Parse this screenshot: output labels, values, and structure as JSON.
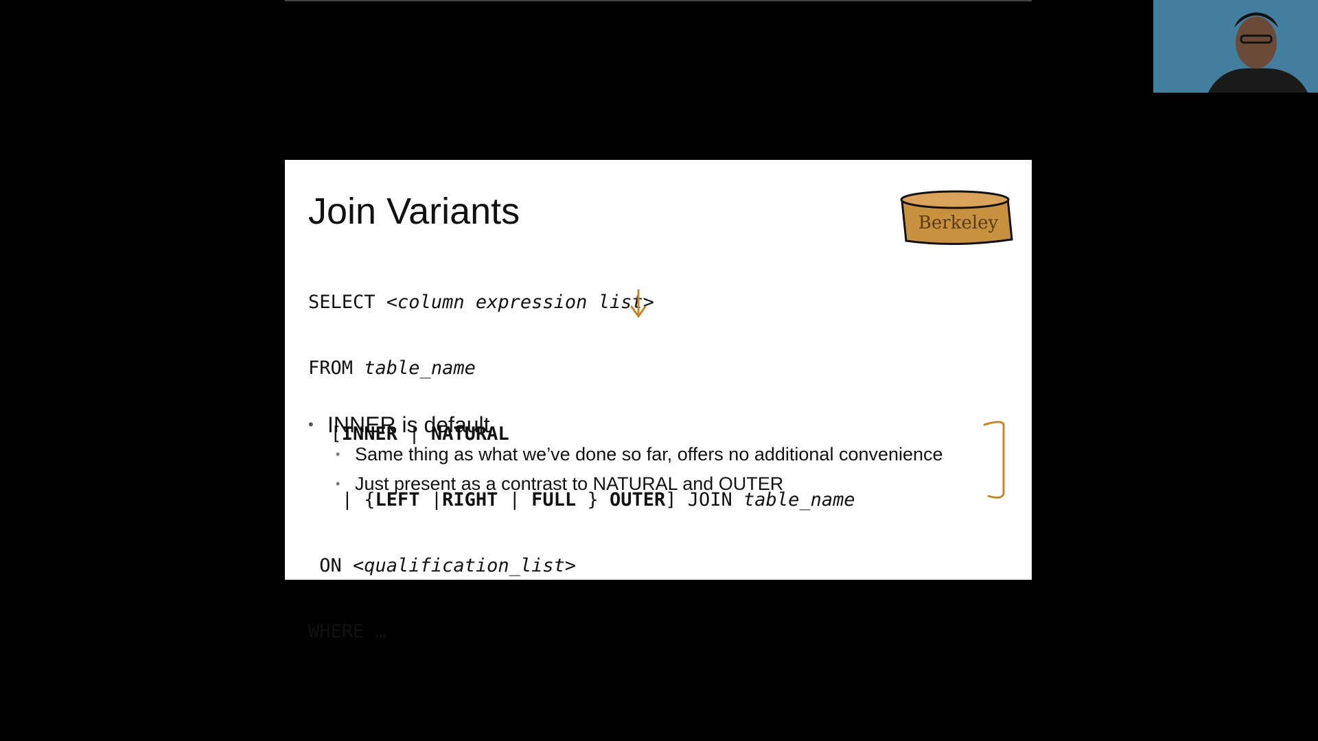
{
  "slide": {
    "title": "Join Variants",
    "code": {
      "l1_kw": "SELECT ",
      "l1_it": "<column expression list>",
      "l2_kw": "FROM ",
      "l2_it": "table_name",
      "l3_a": "  [",
      "l3_b1": "INNER",
      "l3_c": " | ",
      "l3_b2": "NATURAL",
      "l4_a": "   | {",
      "l4_b1": "LEFT",
      "l4_c1": " |",
      "l4_b2": "RIGHT",
      "l4_c2": " | ",
      "l4_b3": "FULL",
      "l4_c3": " } ",
      "l4_b4": "OUTER",
      "l4_c4": "] JOIN ",
      "l4_it": "table_name",
      "l5_kw": " ON ",
      "l5_it": "<qualification_list>",
      "l6": "WHERE …"
    },
    "bullets": {
      "main": "INNER is default",
      "sub1": "Same thing as what we’ve done so far, offers no additional convenience",
      "sub2": "Just present as a contrast to NATURAL and OUTER"
    },
    "logo_text": "Berkeley",
    "colors": {
      "annotation": "#c8862a",
      "logo_fill": "#c8913f"
    }
  }
}
